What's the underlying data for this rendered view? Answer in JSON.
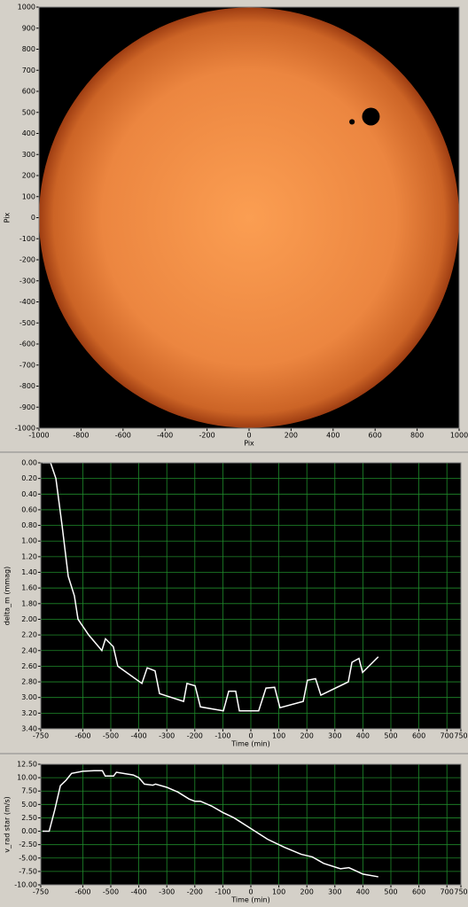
{
  "chart_data": [
    {
      "type": "disk",
      "xlabel": "Pix",
      "ylabel": "Pix",
      "xlim": [
        -1000,
        1000
      ],
      "ylim": [
        -1000,
        1000
      ],
      "xticks": [
        -1000,
        -800,
        -600,
        -400,
        -200,
        0,
        200,
        400,
        600,
        800,
        1000
      ],
      "yticks": [
        -1000,
        -900,
        -800,
        -700,
        -600,
        -500,
        -400,
        -300,
        -200,
        -100,
        0,
        100,
        200,
        300,
        400,
        500,
        600,
        700,
        800,
        900,
        1000
      ],
      "disk": {
        "x": 0,
        "y": 0,
        "r": 1000
      },
      "spots": [
        {
          "x": 580,
          "y": 480,
          "r": 42
        },
        {
          "x": 490,
          "y": 455,
          "r": 13
        }
      ]
    },
    {
      "type": "line",
      "xlabel": "Time (min)",
      "ylabel": "delta_m (mmag)",
      "grid": true,
      "color": "#ffffff",
      "xlim": [
        -750,
        750
      ],
      "ylim": [
        3.4,
        0
      ],
      "xticks": [
        -750,
        -600,
        -500,
        -400,
        -300,
        -200,
        -100,
        0,
        100,
        200,
        300,
        400,
        500,
        600,
        700,
        750
      ],
      "yticks": [
        {
          "value": 0,
          "label": "0.00"
        },
        {
          "value": 0.2,
          "label": "0.20"
        },
        {
          "value": 0.4,
          "label": "0.40"
        },
        {
          "value": 0.6,
          "label": "0.60"
        },
        {
          "value": 0.8,
          "label": "0.80"
        },
        {
          "value": 1,
          "label": "1.00"
        },
        {
          "value": 1.2,
          "label": "1.20"
        },
        {
          "value": 1.4,
          "label": "1.40"
        },
        {
          "value": 1.6,
          "label": "1.60"
        },
        {
          "value": 1.8,
          "label": "1.80"
        },
        {
          "value": 2,
          "label": "2.00"
        },
        {
          "value": 2.2,
          "label": "2.20"
        },
        {
          "value": 2.4,
          "label": "2.40"
        },
        {
          "value": 2.6,
          "label": "2.60"
        },
        {
          "value": 2.8,
          "label": "2.80"
        },
        {
          "value": 3,
          "label": "3.00"
        },
        {
          "value": 3.2,
          "label": "3.20"
        },
        {
          "value": 3.4,
          "label": "3.40"
        }
      ],
      "x": [
        -744,
        -715,
        -696,
        -674,
        -652,
        -630,
        -617,
        -579,
        -532,
        -519,
        -491,
        -475,
        -389,
        -370,
        -342,
        -326,
        -240,
        -228,
        -199,
        -180,
        -98,
        -79,
        -54,
        -41,
        28,
        54,
        85,
        104,
        187,
        202,
        231,
        250,
        348,
        361,
        386,
        399,
        455
      ],
      "values": [
        0,
        0,
        0.2,
        0.8,
        1.45,
        1.7,
        2.0,
        2.2,
        2.4,
        2.25,
        2.35,
        2.6,
        2.82,
        2.62,
        2.66,
        2.95,
        3.05,
        2.82,
        2.85,
        3.12,
        3.17,
        2.92,
        2.92,
        3.17,
        3.17,
        2.88,
        2.87,
        3.13,
        3.05,
        2.78,
        2.76,
        2.97,
        2.8,
        2.55,
        2.5,
        2.68,
        2.48
      ]
    },
    {
      "type": "line",
      "xlabel": "Time (min)",
      "ylabel": "v_rad star (m/s)",
      "grid": true,
      "color": "#ffffff",
      "xlim": [
        -750,
        750
      ],
      "ylim": [
        -10,
        12.5
      ],
      "xticks": [
        -750,
        -600,
        -500,
        -400,
        -300,
        -200,
        -100,
        0,
        100,
        200,
        300,
        400,
        500,
        600,
        700,
        750
      ],
      "yticks": [
        {
          "value": 12.5,
          "label": "12.50"
        },
        {
          "value": 10,
          "label": "10.00"
        },
        {
          "value": 7.5,
          "label": "7.50"
        },
        {
          "value": 5,
          "label": "5.00"
        },
        {
          "value": 2.5,
          "label": "2.50"
        },
        {
          "value": 0,
          "label": "0.00"
        },
        {
          "value": -2.5,
          "label": "-2.50"
        },
        {
          "value": -5,
          "label": "-5.00"
        },
        {
          "value": -7.5,
          "label": "-7.50"
        },
        {
          "value": -10,
          "label": "-10.00"
        }
      ],
      "x": [
        -744,
        -720,
        -700,
        -680,
        -660,
        -640,
        -600,
        -560,
        -530,
        -520,
        -490,
        -480,
        -420,
        -400,
        -380,
        -350,
        -340,
        -300,
        -260,
        -220,
        -200,
        -180,
        -140,
        -100,
        -60,
        0,
        60,
        120,
        180,
        220,
        260,
        320,
        350,
        380,
        400,
        455
      ],
      "values": [
        0,
        0,
        4,
        8.5,
        9.5,
        10.8,
        11.2,
        11.3,
        11.3,
        10.3,
        10.3,
        11,
        10.5,
        10,
        8.8,
        8.6,
        8.8,
        8.2,
        7.3,
        6,
        5.6,
        5.6,
        4.7,
        3.5,
        2.5,
        0.5,
        -1.5,
        -3,
        -4.3,
        -4.8,
        -6,
        -7,
        -6.8,
        -7.5,
        -8,
        -8.5
      ]
    }
  ]
}
